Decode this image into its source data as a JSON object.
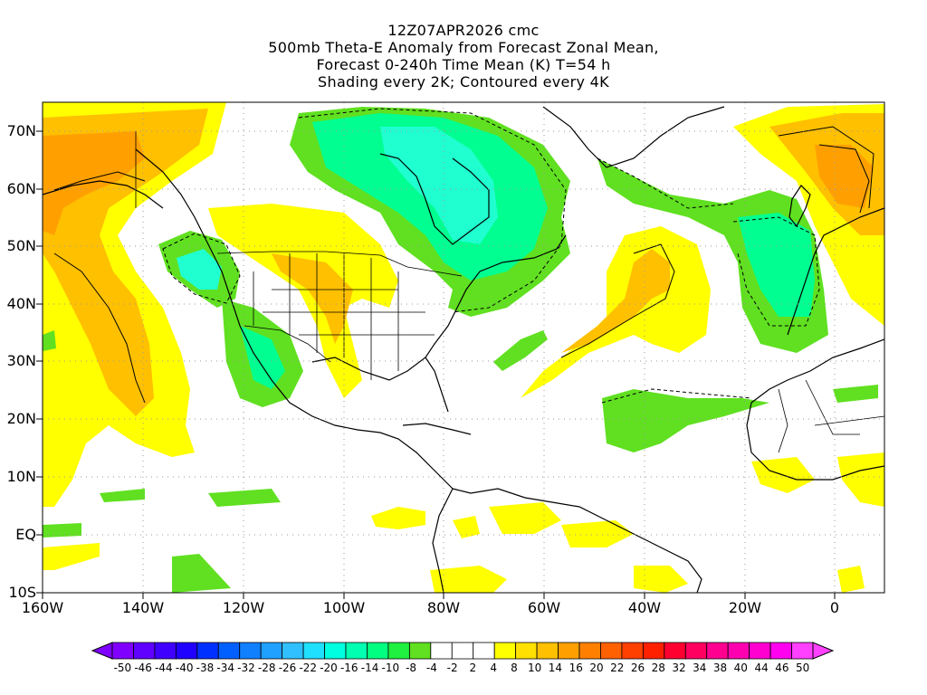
{
  "title": {
    "line1": "12Z07APR2026 cmc",
    "line2": "500mb Theta-E Anomaly from Forecast Zonal Mean,",
    "line3": "Forecast 0-240h Time Mean (K) T=54 h",
    "line4": "Shading every 2K; Contoured every 4K"
  },
  "axes": {
    "lat_labels": [
      "70N",
      "60N",
      "50N",
      "40N",
      "30N",
      "20N",
      "10N",
      "EQ",
      "10S"
    ],
    "lon_labels": [
      "160W",
      "140W",
      "120W",
      "100W",
      "80W",
      "60W",
      "40W",
      "20W",
      "0"
    ]
  },
  "colorbar": {
    "labels": [
      "-50",
      "-46",
      "-44",
      "-40",
      "-38",
      "-34",
      "-32",
      "-28",
      "-26",
      "-22",
      "-20",
      "-16",
      "-14",
      "-10",
      "-8",
      "-4",
      "-2",
      "2",
      "4",
      "8",
      "10",
      "14",
      "16",
      "20",
      "22",
      "26",
      "28",
      "32",
      "34",
      "38",
      "40",
      "44",
      "46",
      "50"
    ],
    "colors": [
      "#8000ff",
      "#6000ff",
      "#4000ff",
      "#2000ff",
      "#0030ff",
      "#0060ff",
      "#1080ff",
      "#20a0ff",
      "#30c0ff",
      "#20e0ff",
      "#00ffe0",
      "#00ffb0",
      "#00ff80",
      "#20f040",
      "#60e020",
      "#ffffff",
      "#ffffff",
      "#ffffff",
      "#ffff00",
      "#ffe000",
      "#ffc000",
      "#ffa000",
      "#ff8000",
      "#ff6000",
      "#ff4000",
      "#ff2000",
      "#ff0030",
      "#ff0060",
      "#ff0090",
      "#ff00b0",
      "#ff00d0",
      "#ff00f0",
      "#ff40ff"
    ]
  },
  "map": {
    "colors": {
      "yellow": "#ffff00",
      "gold": "#ffd000",
      "orange": "#ffa000",
      "green": "#60e020",
      "teal": "#00ff90",
      "cyan": "#20ffd0"
    }
  }
}
